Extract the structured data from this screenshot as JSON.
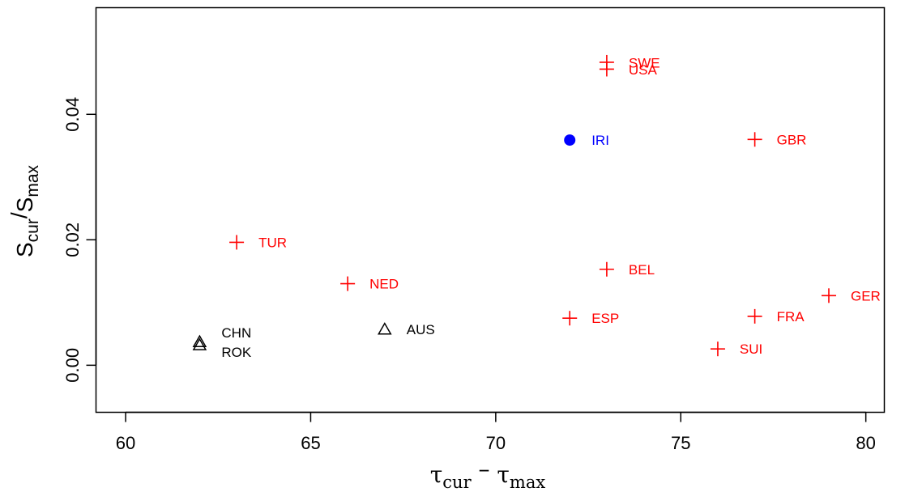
{
  "chart_data": {
    "type": "scatter",
    "xlim": [
      59.2,
      80.5
    ],
    "ylim": [
      -0.0075,
      0.057
    ],
    "x_ticks": [
      60,
      65,
      70,
      75,
      80
    ],
    "x_tick_labels": [
      "60",
      "65",
      "70",
      "75",
      "80"
    ],
    "y_ticks": [
      0.0,
      0.02,
      0.04
    ],
    "y_tick_labels": [
      "0.00",
      "0.02",
      "0.04"
    ],
    "xlabel": {
      "base1": "τ",
      "sub1": "cur",
      "op": " – ",
      "base2": "τ",
      "sub2": "max"
    },
    "ylabel": {
      "base1": "S",
      "sub1": "cur",
      "op": "/",
      "base2": "S",
      "sub2": "max"
    },
    "grid": false,
    "colors": {
      "red": "#ff0000",
      "blue": "#0000ff",
      "black": "#000000"
    },
    "series": [
      {
        "marker": "plus",
        "color": "#ff0000",
        "points": [
          {
            "label": "USA",
            "x": 73,
            "y": 0.0483,
            "label_dy": -0.0012
          },
          {
            "label": "SWE",
            "x": 73,
            "y": 0.0472,
            "label_dy": 0.001
          },
          {
            "label": "GBR",
            "x": 77,
            "y": 0.036,
            "label_dy": 0
          },
          {
            "label": "TUR",
            "x": 63,
            "y": 0.0196,
            "label_dy": 0
          },
          {
            "label": "BEL",
            "x": 73,
            "y": 0.0153,
            "label_dy": 0
          },
          {
            "label": "NED",
            "x": 66,
            "y": 0.013,
            "label_dy": 0
          },
          {
            "label": "GER",
            "x": 79,
            "y": 0.0111,
            "label_dy": 0
          },
          {
            "label": "FRA",
            "x": 77,
            "y": 0.0078,
            "label_dy": 0
          },
          {
            "label": "ESP",
            "x": 72,
            "y": 0.0075,
            "label_dy": 0
          },
          {
            "label": "SUI",
            "x": 76,
            "y": 0.0026,
            "label_dy": 0
          }
        ]
      },
      {
        "marker": "circle",
        "color": "#0000ff",
        "points": [
          {
            "label": "IRI",
            "x": 72,
            "y": 0.0359,
            "label_dy": 0
          }
        ]
      },
      {
        "marker": "triangle",
        "color": "#000000",
        "points": [
          {
            "label": "ROK",
            "x": 62,
            "y": 0.0037,
            "label_dy": -0.0016
          },
          {
            "label": "CHN",
            "x": 62,
            "y": 0.0032,
            "label_dy": 0.002
          },
          {
            "label": "AUS",
            "x": 67,
            "y": 0.0057,
            "label_dy": 0
          }
        ]
      }
    ]
  }
}
